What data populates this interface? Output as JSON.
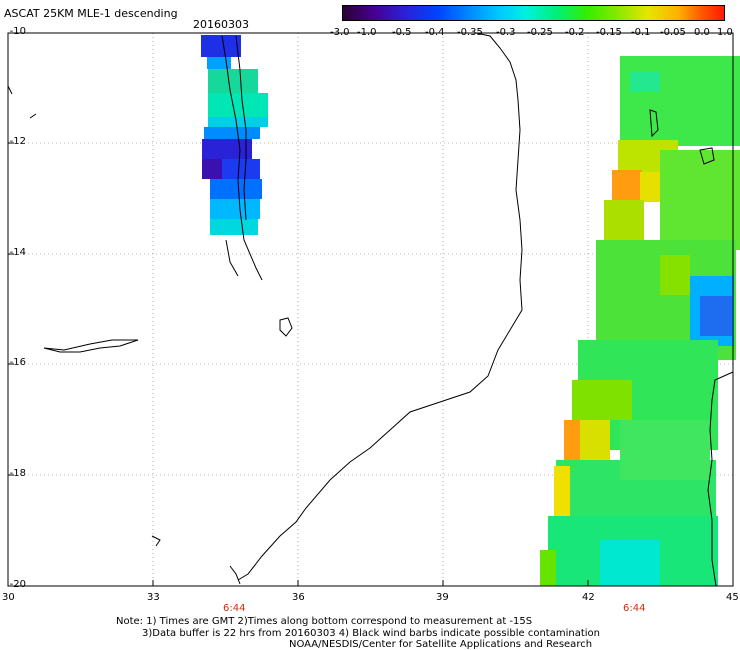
{
  "header": {
    "title": "ASCAT 25KM MLE-1 descending",
    "date": "20160303"
  },
  "colorbar": {
    "labels": [
      "-3.0",
      "-1.0",
      "-0.5",
      "-0.4",
      "-0.35",
      "-0.3",
      "-0.25",
      "-0.2",
      "-0.15",
      "-0.1",
      "-0.05",
      "0.0",
      "1.0"
    ]
  },
  "axes": {
    "y_labels": [
      "-10",
      "-12",
      "-14",
      "-16",
      "-18",
      "-20"
    ],
    "x_labels": [
      "30",
      "33",
      "36",
      "39",
      "42",
      "45"
    ]
  },
  "time_marks": [
    "6:44",
    "6:44"
  ],
  "notes": [
    "Note: 1) Times are GMT 2)Times along bottom correspond to measurement at -15S",
    "3)Data buffer is 22 hrs from 20160303 4) Black wind barbs indicate possible contamination",
    "NOAA/NESDIS/Center for Satellite Applications and Research"
  ]
}
